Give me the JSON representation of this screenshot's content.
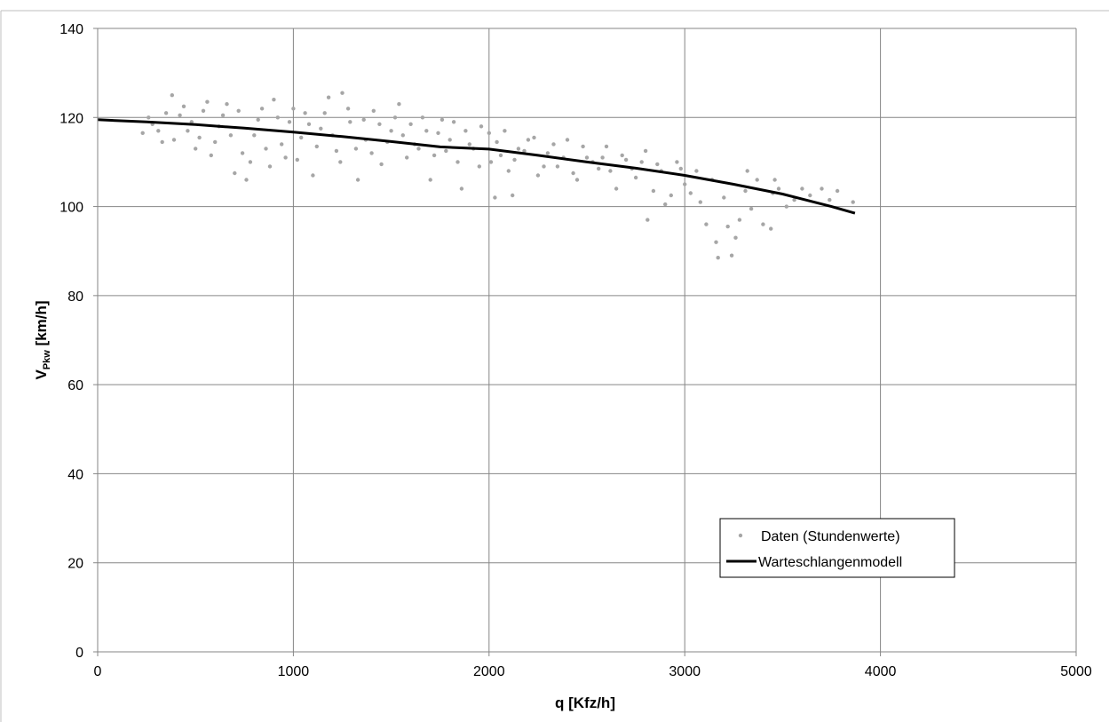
{
  "chart_data": {
    "type": "scatter",
    "title": "",
    "xlabel": "q [Kfz/h]",
    "ylabel": {
      "main": "V",
      "subscript": "Pkw",
      "unit": " [km/h]"
    },
    "xlim": [
      0,
      5000
    ],
    "ylim": [
      0,
      140
    ],
    "xticks": [
      0,
      1000,
      2000,
      3000,
      4000,
      5000
    ],
    "yticks": [
      0,
      20,
      40,
      60,
      80,
      100,
      120,
      140
    ],
    "grid": true,
    "legend_position": "lower-right",
    "series": [
      {
        "name": "Daten (Stundenwerte)",
        "kind": "points",
        "color": "#a6a6a6",
        "points": [
          [
            230,
            116.5
          ],
          [
            280,
            118.5
          ],
          [
            330,
            114.5
          ],
          [
            380,
            125
          ],
          [
            420,
            120.5
          ],
          [
            460,
            117
          ],
          [
            500,
            113
          ],
          [
            540,
            121.5
          ],
          [
            580,
            111.5
          ],
          [
            620,
            118
          ],
          [
            660,
            123
          ],
          [
            700,
            107.5
          ],
          [
            740,
            112
          ],
          [
            760,
            106
          ],
          [
            800,
            116
          ],
          [
            840,
            122
          ],
          [
            880,
            109
          ],
          [
            900,
            124
          ],
          [
            940,
            114
          ],
          [
            980,
            119
          ],
          [
            1020,
            110.5
          ],
          [
            1060,
            121
          ],
          [
            1100,
            107
          ],
          [
            1140,
            117.5
          ],
          [
            1180,
            124.5
          ],
          [
            1220,
            112.5
          ],
          [
            1250,
            125.5
          ],
          [
            1290,
            119
          ],
          [
            1330,
            106
          ],
          [
            1370,
            115
          ],
          [
            1410,
            121.5
          ],
          [
            1450,
            109.5
          ],
          [
            1500,
            117
          ],
          [
            1540,
            123
          ],
          [
            1580,
            111
          ],
          [
            1620,
            114
          ],
          [
            1660,
            120
          ],
          [
            1700,
            106
          ],
          [
            1740,
            116.5
          ],
          [
            1780,
            112.5
          ],
          [
            1820,
            119
          ],
          [
            1860,
            104
          ],
          [
            1900,
            114
          ],
          [
            1950,
            109
          ],
          [
            2000,
            116.5
          ],
          [
            2030,
            102
          ],
          [
            2060,
            111.5
          ],
          [
            2100,
            108
          ],
          [
            2120,
            102.5
          ],
          [
            2150,
            113
          ],
          [
            2200,
            115
          ],
          [
            2250,
            107
          ],
          [
            2300,
            112
          ],
          [
            2350,
            109
          ],
          [
            2400,
            115
          ],
          [
            2450,
            106
          ],
          [
            2500,
            111
          ],
          [
            2560,
            108.5
          ],
          [
            2600,
            113.5
          ],
          [
            2650,
            104
          ],
          [
            2700,
            110.5
          ],
          [
            2750,
            106.5
          ],
          [
            2800,
            112.5
          ],
          [
            2810,
            97
          ],
          [
            2840,
            103.5
          ],
          [
            2880,
            108
          ],
          [
            2900,
            100.5
          ],
          [
            2930,
            102.5
          ],
          [
            2960,
            110
          ],
          [
            3000,
            105
          ],
          [
            3030,
            103
          ],
          [
            3060,
            108
          ],
          [
            3080,
            101
          ],
          [
            3110,
            96
          ],
          [
            3140,
            106
          ],
          [
            3160,
            92
          ],
          [
            3170,
            88.5
          ],
          [
            3200,
            102
          ],
          [
            3220,
            95.5
          ],
          [
            3240,
            89
          ],
          [
            3260,
            93
          ],
          [
            3280,
            97
          ],
          [
            3310,
            103.5
          ],
          [
            3340,
            99.5
          ],
          [
            3370,
            106
          ],
          [
            3400,
            96
          ],
          [
            3440,
            95
          ],
          [
            3450,
            103
          ],
          [
            3480,
            104
          ],
          [
            3520,
            100
          ],
          [
            3560,
            101.5
          ],
          [
            3600,
            104
          ],
          [
            3640,
            102.5
          ],
          [
            3700,
            104
          ],
          [
            3740,
            101.5
          ],
          [
            3780,
            103.5
          ],
          [
            3860,
            101
          ],
          [
            3460,
            106
          ],
          [
            3320,
            108
          ],
          [
            2580,
            111
          ],
          [
            260,
            120
          ],
          [
            310,
            117
          ],
          [
            350,
            121
          ],
          [
            390,
            115
          ],
          [
            440,
            122.5
          ],
          [
            480,
            119
          ],
          [
            520,
            115.5
          ],
          [
            560,
            123.5
          ],
          [
            600,
            114.5
          ],
          [
            640,
            120.5
          ],
          [
            680,
            116
          ],
          [
            720,
            121.5
          ],
          [
            780,
            110
          ],
          [
            820,
            119.5
          ],
          [
            860,
            113
          ],
          [
            920,
            120
          ],
          [
            960,
            111
          ],
          [
            1000,
            122
          ],
          [
            1040,
            115.5
          ],
          [
            1080,
            118.5
          ],
          [
            1120,
            113.5
          ],
          [
            1160,
            121
          ],
          [
            1200,
            116
          ],
          [
            1240,
            110
          ],
          [
            1280,
            122
          ],
          [
            1320,
            113
          ],
          [
            1360,
            119.5
          ],
          [
            1400,
            112
          ],
          [
            1440,
            118.5
          ],
          [
            1480,
            114.5
          ],
          [
            1520,
            120
          ],
          [
            1560,
            116
          ],
          [
            1600,
            118.5
          ],
          [
            1640,
            113
          ],
          [
            1680,
            117
          ],
          [
            1720,
            111.5
          ],
          [
            1760,
            119.5
          ],
          [
            1800,
            115
          ],
          [
            1840,
            110
          ],
          [
            1880,
            117
          ],
          [
            1920,
            113
          ],
          [
            1960,
            118
          ],
          [
            2010,
            110
          ],
          [
            2040,
            114.5
          ],
          [
            2080,
            117
          ],
          [
            2130,
            110.5
          ],
          [
            2180,
            112.5
          ],
          [
            2230,
            115.5
          ],
          [
            2280,
            109
          ],
          [
            2330,
            114
          ],
          [
            2380,
            111
          ],
          [
            2430,
            107.5
          ],
          [
            2480,
            113.5
          ],
          [
            2530,
            110
          ],
          [
            2620,
            108
          ],
          [
            2680,
            111.5
          ],
          [
            2730,
            108.5
          ],
          [
            2780,
            110
          ],
          [
            2860,
            109.5
          ],
          [
            2980,
            108.5
          ]
        ]
      },
      {
        "name": "Warteschlangenmodell",
        "kind": "line",
        "color": "#000000",
        "x": [
          0,
          250,
          500,
          750,
          1000,
          1250,
          1500,
          1750,
          2000,
          2250,
          2500,
          2750,
          3000,
          3250,
          3500,
          3750,
          3870
        ],
        "y": [
          119.5,
          119.0,
          118.4,
          117.6,
          116.7,
          115.7,
          114.6,
          113.4,
          112.9,
          111.5,
          110.0,
          108.6,
          107.0,
          105.0,
          102.8,
          100.0,
          98.5
        ]
      }
    ]
  }
}
